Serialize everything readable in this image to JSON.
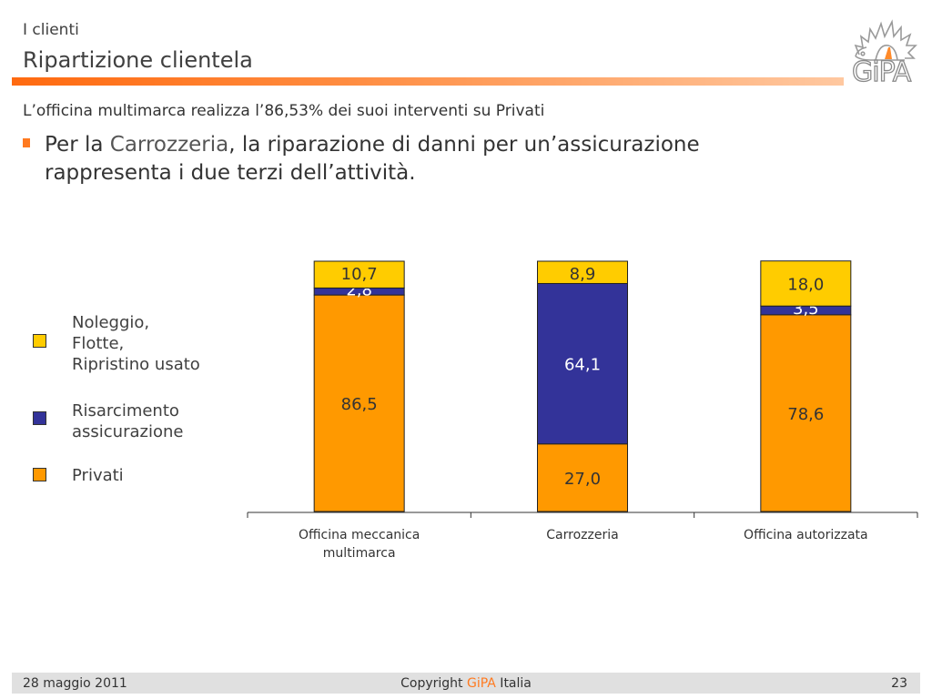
{
  "header": {
    "section": "I clienti",
    "title": "Ripartizione clientela",
    "logo_text": "GiPA"
  },
  "subtitle": "L’officina multimarca realizza l’86,53% dei suoi interventi su Privati",
  "bullet": {
    "prefix": "Per la ",
    "highlight": "Carrozzeria",
    "rest": ", la riparazione di danni per un’assicurazione rappresenta i due terzi dell’attività."
  },
  "colors": {
    "privati": "#ff9900",
    "risarcimento": "#333399",
    "noleggio": "#ffcc00",
    "accent": "#ff7a20"
  },
  "chart_data": {
    "type": "bar",
    "stacked": true,
    "title": "",
    "xlabel": "",
    "ylabel": "",
    "ylim": [
      0,
      100
    ],
    "categories": [
      "Officina meccanica\nmultimarca",
      "Carrozzeria",
      "Officina autorizzata"
    ],
    "series": [
      {
        "name": "Privati",
        "values": [
          86.5,
          27.0,
          78.6
        ],
        "labels": [
          "86,5",
          "27,0",
          "78,6"
        ],
        "color": "#ff9900",
        "label_color": "#333333"
      },
      {
        "name": "Risarcimento\nassicurazione",
        "values": [
          2.8,
          64.1,
          3.5
        ],
        "labels": [
          "2,8",
          "64,1",
          "3,5"
        ],
        "color": "#333399",
        "label_color": "#ffffff"
      },
      {
        "name": "Noleggio,\nFlotte,\nRipristino usato",
        "values": [
          10.7,
          8.9,
          18.0
        ],
        "labels": [
          "10,7",
          "8,9",
          "18,0"
        ],
        "color": "#ffcc00",
        "label_color": "#333333"
      }
    ],
    "legend_position": "left",
    "grid": false
  },
  "footer": {
    "date": "28 maggio 2011",
    "copyright_prefix": "Copyright ",
    "copyright_brand": "GiPA",
    "copyright_suffix": " Italia",
    "page": "23"
  }
}
